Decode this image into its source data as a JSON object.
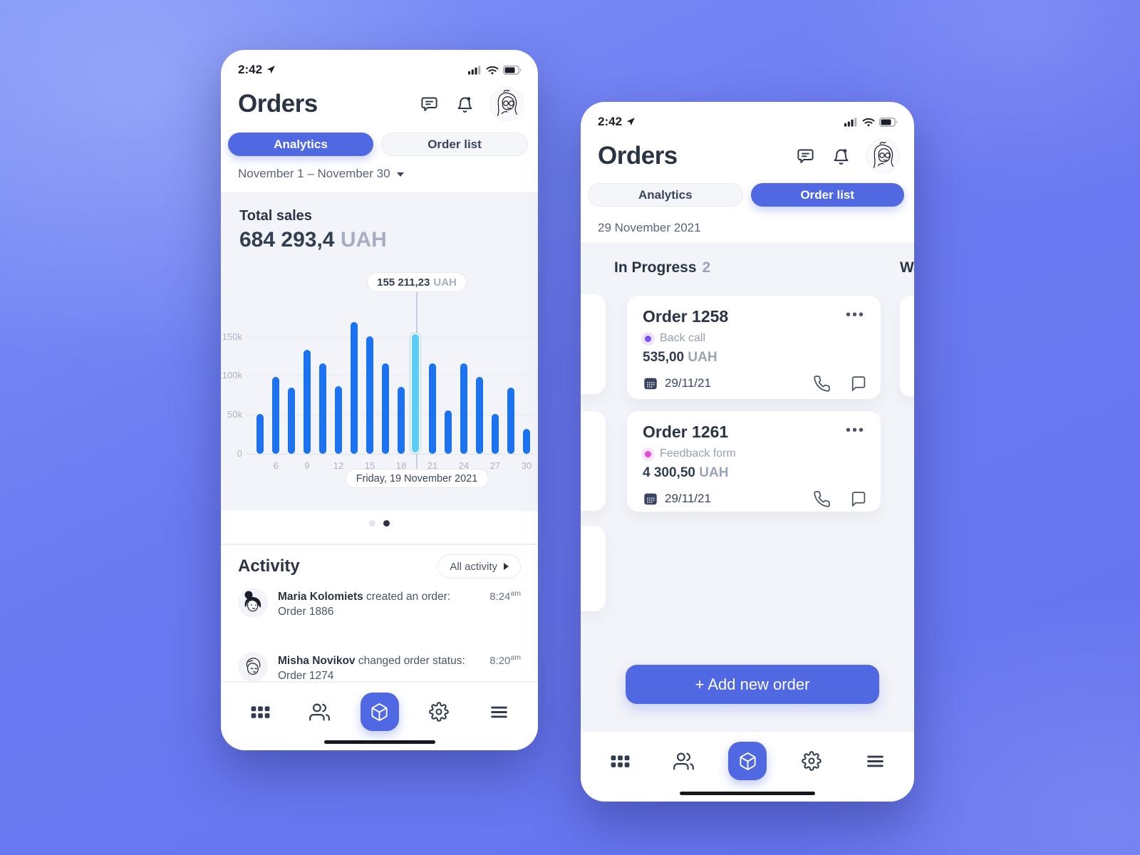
{
  "colors": {
    "accent": "#5068E1",
    "bar": "#1C72EF",
    "bar_highlight": "#5BCCF6"
  },
  "left_phone": {
    "status_time": "2:42",
    "title": "Orders",
    "tabs": [
      {
        "label": "Analytics",
        "active": true
      },
      {
        "label": "Order list",
        "active": false
      }
    ],
    "date_range": "November 1 – November 30",
    "total_sales": {
      "label": "Total sales",
      "value": "684 293,4",
      "currency": "UAH"
    },
    "chart_data": {
      "type": "bar",
      "title": "Total sales",
      "x_tick_labels": [
        "6",
        "9",
        "12",
        "15",
        "18",
        "21",
        "24",
        "27",
        "30"
      ],
      "y_tick_labels": [
        "0",
        "50k",
        "100k",
        "150k"
      ],
      "ylim_k": [
        0,
        175
      ],
      "values_k": [
        51,
        99,
        85,
        133,
        116,
        87,
        169,
        151,
        116,
        86,
        155.2,
        116,
        56,
        116,
        99,
        51,
        85,
        32
      ],
      "highlighted_index": 10,
      "tooltip_value": "155 211,23",
      "tooltip_currency": "UAH",
      "selected_day_label": "Friday, 19 November 2021",
      "grid": true
    },
    "pagination_dots": 2,
    "active_dot_index": 1,
    "activity": {
      "title": "Activity",
      "button_label": "All activity",
      "items": [
        {
          "name": "Maria Kolomiets",
          "action": " created an order:",
          "order": "Order 1886",
          "time": "8:24",
          "meridiem": "am"
        },
        {
          "name": "Misha Novikov",
          "action": " changed order status:",
          "order": "Order 1274",
          "time": "8:20",
          "meridiem": "am"
        }
      ]
    }
  },
  "right_phone": {
    "status_time": "2:42",
    "title": "Orders",
    "tabs": [
      {
        "label": "Analytics",
        "active": false
      },
      {
        "label": "Order list",
        "active": true
      }
    ],
    "date": "29 November 2021",
    "board": {
      "column_title": "In Progress",
      "column_count": "2",
      "next_column_title": "Waiting",
      "cards": [
        {
          "title": "Order 1258",
          "status": "Back call",
          "status_color": "#7C4EF3",
          "status_halo": "#ECE5FD",
          "amount": "535,00",
          "currency": "UAH",
          "date": "29/11/21"
        },
        {
          "title": "Order 1261",
          "status": "Feedback form",
          "status_color": "#E24AD9",
          "status_halo": "#FBE3F8",
          "amount": "4 300,50",
          "currency": "UAH",
          "date": "29/11/21"
        }
      ]
    },
    "add_button_label": "+ Add new order"
  }
}
